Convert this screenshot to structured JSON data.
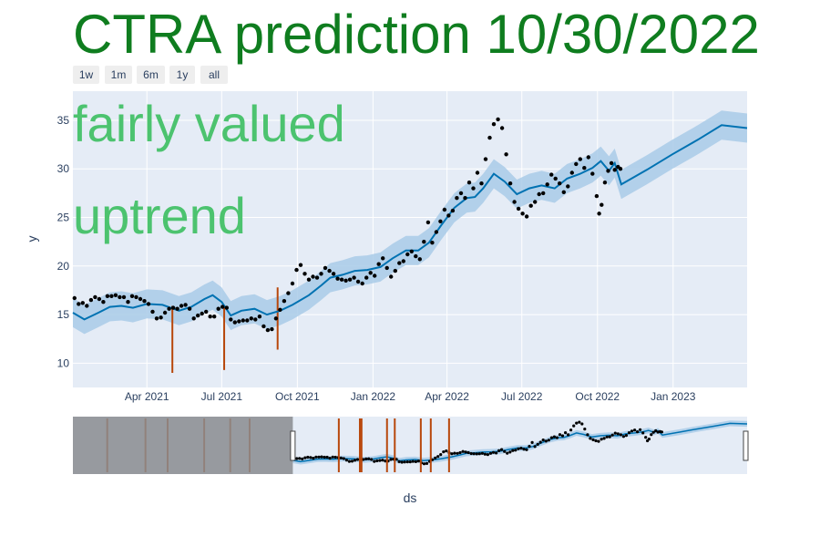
{
  "colors": {
    "title": "#0f7d1f",
    "overlay_text": "#4cc36f",
    "plot_bg": "#e5ecf6",
    "grid": "#ffffff",
    "trend_line": "#0072b2",
    "band": "#a9cbe8",
    "points": "#000000",
    "changepoints": "#b8470b",
    "slider_mask": "#8a8c8f",
    "text": "#2a3f5f"
  },
  "range_buttons": [
    "1w",
    "1m",
    "6m",
    "1y",
    "all"
  ],
  "chart_data": {
    "type": "line",
    "title": "CTRA prediction 10/30/2022",
    "annotations": [
      "fairly valued",
      "uptrend"
    ],
    "xlabel": "ds",
    "ylabel": "y",
    "ylim": [
      7.5,
      38
    ],
    "xlim": [
      "2021-01-01",
      "2023-04-01"
    ],
    "x_ticks": [
      {
        "date": "2021-04-01",
        "label": "Apr 2021"
      },
      {
        "date": "2021-07-01",
        "label": "Jul 2021"
      },
      {
        "date": "2021-10-01",
        "label": "Oct 2021"
      },
      {
        "date": "2022-01-01",
        "label": "Jan 2022"
      },
      {
        "date": "2022-04-01",
        "label": "Apr 2022"
      },
      {
        "date": "2022-07-01",
        "label": "Jul 2022"
      },
      {
        "date": "2022-10-01",
        "label": "Oct 2022"
      },
      {
        "date": "2023-01-01",
        "label": "Jan 2023"
      }
    ],
    "y_ticks": [
      10,
      15,
      20,
      25,
      30,
      35
    ],
    "grid": true,
    "forecast": {
      "points": [
        [
          "2021-01-01",
          15.2
        ],
        [
          "2021-01-15",
          14.5
        ],
        [
          "2021-02-01",
          15.2
        ],
        [
          "2021-02-15",
          15.8
        ],
        [
          "2021-03-01",
          15.9
        ],
        [
          "2021-03-15",
          15.7
        ],
        [
          "2021-04-01",
          16.1
        ],
        [
          "2021-04-20",
          16.0
        ],
        [
          "2021-05-10",
          15.4
        ],
        [
          "2021-05-25",
          15.8
        ],
        [
          "2021-06-10",
          16.6
        ],
        [
          "2021-06-20",
          17.0
        ],
        [
          "2021-07-01",
          16.3
        ],
        [
          "2021-07-12",
          14.9
        ],
        [
          "2021-07-25",
          15.4
        ],
        [
          "2021-08-10",
          15.6
        ],
        [
          "2021-08-25",
          15.0
        ],
        [
          "2021-09-10",
          15.4
        ],
        [
          "2021-09-25",
          16.0
        ],
        [
          "2021-10-15",
          17.0
        ],
        [
          "2021-10-30",
          18.0
        ],
        [
          "2021-11-10",
          18.8
        ],
        [
          "2021-11-25",
          19.1
        ],
        [
          "2021-12-10",
          19.5
        ],
        [
          "2021-12-25",
          19.6
        ],
        [
          "2022-01-10",
          19.9
        ],
        [
          "2022-01-25",
          20.8
        ],
        [
          "2022-02-10",
          21.6
        ],
        [
          "2022-02-25",
          21.6
        ],
        [
          "2022-03-10",
          22.4
        ],
        [
          "2022-03-25",
          24.2
        ],
        [
          "2022-04-10",
          26.0
        ],
        [
          "2022-04-25",
          27.0
        ],
        [
          "2022-05-05",
          27.1
        ],
        [
          "2022-05-15",
          28.0
        ],
        [
          "2022-05-28",
          29.5
        ],
        [
          "2022-06-10",
          28.7
        ],
        [
          "2022-06-25",
          27.4
        ],
        [
          "2022-07-10",
          28.0
        ],
        [
          "2022-07-25",
          28.3
        ],
        [
          "2022-08-10",
          28.0
        ],
        [
          "2022-08-25",
          29.0
        ],
        [
          "2022-09-10",
          29.5
        ],
        [
          "2022-09-25",
          30.1
        ],
        [
          "2022-10-05",
          30.8
        ],
        [
          "2022-10-15",
          29.8
        ],
        [
          "2022-10-22",
          30.6
        ],
        [
          "2022-10-30",
          28.4
        ],
        [
          "2022-11-30",
          29.9
        ],
        [
          "2022-12-31",
          31.5
        ],
        [
          "2023-01-31",
          33.0
        ],
        [
          "2023-03-01",
          34.5
        ],
        [
          "2023-04-01",
          34.2
        ]
      ],
      "band_halfwidth": 1.5
    },
    "observed": [
      [
        "2021-01-03",
        16.7
      ],
      [
        "2021-01-08",
        16.1
      ],
      [
        "2021-01-13",
        16.2
      ],
      [
        "2021-01-18",
        15.9
      ],
      [
        "2021-01-23",
        16.5
      ],
      [
        "2021-01-28",
        16.8
      ],
      [
        "2021-02-02",
        16.6
      ],
      [
        "2021-02-07",
        16.3
      ],
      [
        "2021-02-12",
        16.9
      ],
      [
        "2021-02-17",
        16.9
      ],
      [
        "2021-02-22",
        17.0
      ],
      [
        "2021-02-27",
        16.8
      ],
      [
        "2021-03-04",
        16.8
      ],
      [
        "2021-03-09",
        16.3
      ],
      [
        "2021-03-14",
        16.9
      ],
      [
        "2021-03-19",
        16.8
      ],
      [
        "2021-03-24",
        16.6
      ],
      [
        "2021-03-29",
        16.4
      ],
      [
        "2021-04-03",
        16.1
      ],
      [
        "2021-04-08",
        15.3
      ],
      [
        "2021-04-13",
        14.6
      ],
      [
        "2021-04-18",
        14.7
      ],
      [
        "2021-04-23",
        15.2
      ],
      [
        "2021-04-28",
        15.6
      ],
      [
        "2021-05-03",
        15.7
      ],
      [
        "2021-05-08",
        15.6
      ],
      [
        "2021-05-13",
        15.9
      ],
      [
        "2021-05-18",
        16.0
      ],
      [
        "2021-05-23",
        15.6
      ],
      [
        "2021-05-28",
        14.6
      ],
      [
        "2021-06-02",
        14.9
      ],
      [
        "2021-06-07",
        15.1
      ],
      [
        "2021-06-12",
        15.3
      ],
      [
        "2021-06-17",
        14.8
      ],
      [
        "2021-06-22",
        14.8
      ],
      [
        "2021-06-27",
        15.6
      ],
      [
        "2021-07-02",
        15.8
      ],
      [
        "2021-07-07",
        15.7
      ],
      [
        "2021-07-12",
        14.5
      ],
      [
        "2021-07-17",
        14.2
      ],
      [
        "2021-07-22",
        14.3
      ],
      [
        "2021-07-27",
        14.4
      ],
      [
        "2021-08-01",
        14.4
      ],
      [
        "2021-08-06",
        14.6
      ],
      [
        "2021-08-11",
        14.5
      ],
      [
        "2021-08-16",
        14.8
      ],
      [
        "2021-08-21",
        13.8
      ],
      [
        "2021-08-26",
        13.4
      ],
      [
        "2021-08-31",
        13.5
      ],
      [
        "2021-09-05",
        14.6
      ],
      [
        "2021-09-10",
        15.5
      ],
      [
        "2021-09-15",
        16.4
      ],
      [
        "2021-09-20",
        17.2
      ],
      [
        "2021-09-25",
        18.2
      ],
      [
        "2021-09-30",
        19.6
      ],
      [
        "2021-10-05",
        20.1
      ],
      [
        "2021-10-10",
        19.2
      ],
      [
        "2021-10-15",
        18.6
      ],
      [
        "2021-10-20",
        18.9
      ],
      [
        "2021-10-25",
        18.8
      ],
      [
        "2021-10-30",
        19.2
      ],
      [
        "2021-11-04",
        19.8
      ],
      [
        "2021-11-09",
        19.5
      ],
      [
        "2021-11-14",
        19.2
      ],
      [
        "2021-11-19",
        18.7
      ],
      [
        "2021-11-24",
        18.6
      ],
      [
        "2021-11-29",
        18.5
      ],
      [
        "2021-12-04",
        18.6
      ],
      [
        "2021-12-09",
        18.8
      ],
      [
        "2021-12-14",
        18.4
      ],
      [
        "2021-12-19",
        18.2
      ],
      [
        "2021-12-24",
        18.8
      ],
      [
        "2021-12-29",
        19.3
      ],
      [
        "2022-01-03",
        19.0
      ],
      [
        "2022-01-08",
        20.2
      ],
      [
        "2022-01-13",
        20.8
      ],
      [
        "2022-01-18",
        19.8
      ],
      [
        "2022-01-23",
        18.9
      ],
      [
        "2022-01-28",
        19.5
      ],
      [
        "2022-02-02",
        20.3
      ],
      [
        "2022-02-07",
        20.5
      ],
      [
        "2022-02-12",
        21.2
      ],
      [
        "2022-02-17",
        21.5
      ],
      [
        "2022-02-22",
        21.0
      ],
      [
        "2022-02-27",
        20.7
      ],
      [
        "2022-03-04",
        22.5
      ],
      [
        "2022-03-09",
        24.5
      ],
      [
        "2022-03-14",
        22.4
      ],
      [
        "2022-03-19",
        23.5
      ],
      [
        "2022-03-24",
        24.6
      ],
      [
        "2022-03-29",
        25.8
      ],
      [
        "2022-04-03",
        25.2
      ],
      [
        "2022-04-08",
        25.7
      ],
      [
        "2022-04-13",
        27.0
      ],
      [
        "2022-04-18",
        27.5
      ],
      [
        "2022-04-23",
        27.0
      ],
      [
        "2022-04-28",
        28.6
      ],
      [
        "2022-05-03",
        28.0
      ],
      [
        "2022-05-08",
        29.6
      ],
      [
        "2022-05-13",
        28.5
      ],
      [
        "2022-05-18",
        31.0
      ],
      [
        "2022-05-23",
        33.2
      ],
      [
        "2022-05-28",
        34.6
      ],
      [
        "2022-06-02",
        35.1
      ],
      [
        "2022-06-07",
        34.2
      ],
      [
        "2022-06-12",
        31.5
      ],
      [
        "2022-06-17",
        28.5
      ],
      [
        "2022-06-22",
        26.6
      ],
      [
        "2022-06-27",
        25.9
      ],
      [
        "2022-07-02",
        25.4
      ],
      [
        "2022-07-07",
        25.1
      ],
      [
        "2022-07-12",
        26.2
      ],
      [
        "2022-07-17",
        26.6
      ],
      [
        "2022-07-22",
        27.4
      ],
      [
        "2022-07-27",
        27.5
      ],
      [
        "2022-08-01",
        28.4
      ],
      [
        "2022-08-06",
        29.4
      ],
      [
        "2022-08-11",
        29.0
      ],
      [
        "2022-08-16",
        28.5
      ],
      [
        "2022-08-21",
        27.6
      ],
      [
        "2022-08-26",
        28.2
      ],
      [
        "2022-08-31",
        29.6
      ],
      [
        "2022-09-05",
        30.5
      ],
      [
        "2022-09-10",
        31.0
      ],
      [
        "2022-09-15",
        30.1
      ],
      [
        "2022-09-20",
        31.2
      ],
      [
        "2022-09-25",
        29.5
      ],
      [
        "2022-09-30",
        27.2
      ],
      [
        "2022-10-03",
        25.4
      ],
      [
        "2022-10-06",
        26.3
      ],
      [
        "2022-10-10",
        28.6
      ],
      [
        "2022-10-14",
        29.8
      ],
      [
        "2022-10-18",
        30.6
      ],
      [
        "2022-10-22",
        29.9
      ],
      [
        "2022-10-26",
        30.2
      ],
      [
        "2022-10-29",
        30.0
      ]
    ],
    "changepoints": [
      {
        "date": "2021-05-02",
        "low": 9.0,
        "high": 15.9
      },
      {
        "date": "2021-07-04",
        "low": 9.3,
        "high": 15.7
      },
      {
        "date": "2021-09-07",
        "low": 11.4,
        "high": 17.8
      }
    ],
    "range_slider": {
      "selected_range": [
        "2021-01-01",
        "2023-04-01"
      ],
      "slider_range": [
        "2019-12-01",
        "2023-04-01"
      ],
      "changepoint_dates": [
        "2020-02-01",
        "2020-04-10",
        "2020-05-20",
        "2020-07-25",
        "2020-09-10",
        "2020-10-15",
        "2021-03-25",
        "2021-05-05",
        "2021-06-20",
        "2021-08-20",
        "2021-10-10",
        "2021-05-02",
        "2021-07-04",
        "2021-09-07"
      ]
    }
  }
}
